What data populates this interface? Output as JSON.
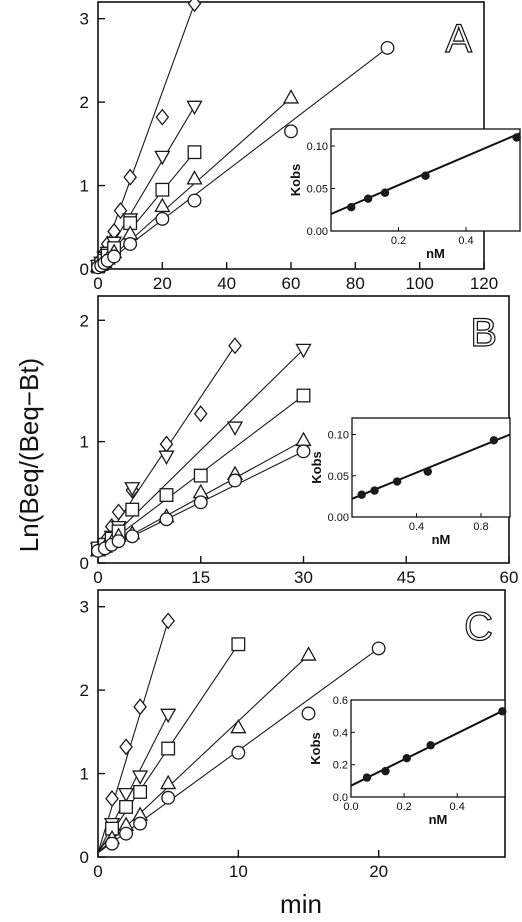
{
  "figure": {
    "ylabel": "Ln(Beq/(Beq−Bt)",
    "xlabel": "min"
  },
  "chart_data": [
    {
      "type": "line",
      "panel_label": "A",
      "xlim": [
        0,
        120
      ],
      "ylim": [
        0,
        3.2
      ],
      "xticks": [
        "0",
        "20",
        "40",
        "60",
        "80",
        "100",
        "120"
      ],
      "yticks": [
        "0",
        "1",
        "2",
        "3"
      ],
      "series": [
        {
          "marker": "diamond",
          "x": [
            0,
            1,
            2,
            3,
            5,
            7,
            10,
            20,
            30
          ],
          "y": [
            0.05,
            0.12,
            0.2,
            0.3,
            0.45,
            0.7,
            1.1,
            1.82,
            3.18
          ]
        },
        {
          "marker": "triangle-down",
          "x": [
            0,
            1,
            2,
            3,
            5,
            10,
            20,
            30
          ],
          "y": [
            0.04,
            0.08,
            0.14,
            0.2,
            0.32,
            0.6,
            1.35,
            1.95
          ]
        },
        {
          "marker": "square",
          "x": [
            0,
            1,
            2,
            3,
            5,
            10,
            20,
            30
          ],
          "y": [
            0.03,
            0.06,
            0.1,
            0.16,
            0.25,
            0.55,
            0.95,
            1.4
          ]
        },
        {
          "marker": "triangle-up",
          "x": [
            0,
            1,
            2,
            3,
            5,
            10,
            20,
            30,
            60
          ],
          "y": [
            0.03,
            0.05,
            0.08,
            0.12,
            0.2,
            0.42,
            0.75,
            1.08,
            2.05
          ]
        },
        {
          "marker": "circle",
          "x": [
            0,
            1,
            2,
            3,
            5,
            10,
            20,
            30,
            60,
            90
          ],
          "y": [
            0.02,
            0.04,
            0.07,
            0.1,
            0.15,
            0.3,
            0.6,
            0.82,
            1.65,
            2.65
          ]
        }
      ],
      "fit_lines": [
        {
          "from": [
            0,
            0
          ],
          "to": [
            30,
            3.18
          ]
        },
        {
          "from": [
            0,
            0
          ],
          "to": [
            30,
            1.95
          ]
        },
        {
          "from": [
            0,
            0
          ],
          "to": [
            30,
            1.4
          ]
        },
        {
          "from": [
            0,
            0
          ],
          "to": [
            60,
            2.05
          ]
        },
        {
          "from": [
            0,
            0
          ],
          "to": [
            90,
            2.65
          ]
        }
      ],
      "inset": {
        "xlabel": "nM",
        "ylabel": "Kobs",
        "xlim": [
          0,
          0.56
        ],
        "ylim": [
          0,
          0.12
        ],
        "xticks": [
          "0.2",
          "0.4"
        ],
        "xtick_values": [
          0.2,
          0.4
        ],
        "yticks": [
          "0.00",
          "0.05",
          "0.10"
        ],
        "ytick_values": [
          0,
          0.05,
          0.1
        ],
        "x": [
          0.06,
          0.11,
          0.16,
          0.28,
          0.55
        ],
        "y": [
          0.028,
          0.038,
          0.045,
          0.065,
          0.11
        ],
        "fit": {
          "from": [
            0,
            0.02
          ],
          "to": [
            0.56,
            0.115
          ]
        }
      }
    },
    {
      "type": "line",
      "panel_label": "B",
      "xlim": [
        0,
        60
      ],
      "ylim": [
        0,
        2.2
      ],
      "xticks": [
        "0",
        "15",
        "30",
        "45",
        "60"
      ],
      "yticks": [
        "0",
        "1",
        "2"
      ],
      "series": [
        {
          "marker": "diamond",
          "x": [
            0,
            1,
            2,
            3,
            5,
            10,
            15,
            20
          ],
          "y": [
            0.12,
            0.18,
            0.3,
            0.42,
            0.6,
            0.98,
            1.23,
            1.79
          ]
        },
        {
          "marker": "triangle-down",
          "x": [
            0,
            1,
            2,
            3,
            5,
            10,
            20,
            30
          ],
          "y": [
            0.12,
            0.16,
            0.22,
            0.3,
            0.62,
            0.88,
            1.12,
            1.76
          ]
        },
        {
          "marker": "square",
          "x": [
            0,
            1,
            2,
            3,
            5,
            10,
            15,
            30
          ],
          "y": [
            0.12,
            0.15,
            0.2,
            0.26,
            0.44,
            0.56,
            0.72,
            1.38
          ]
        },
        {
          "marker": "triangle-up",
          "x": [
            0,
            1,
            2,
            3,
            5,
            10,
            15,
            20,
            30
          ],
          "y": [
            0.1,
            0.13,
            0.17,
            0.22,
            0.24,
            0.38,
            0.58,
            0.73,
            1.01
          ]
        },
        {
          "marker": "circle",
          "x": [
            0,
            1,
            2,
            3,
            5,
            10,
            15,
            20,
            30
          ],
          "y": [
            0.1,
            0.12,
            0.15,
            0.18,
            0.22,
            0.36,
            0.5,
            0.68,
            0.92
          ]
        }
      ],
      "fit_lines": [
        {
          "from": [
            0,
            0.1
          ],
          "to": [
            20,
            1.79
          ]
        },
        {
          "from": [
            0,
            0.1
          ],
          "to": [
            30,
            1.76
          ]
        },
        {
          "from": [
            0,
            0.1
          ],
          "to": [
            30,
            1.38
          ]
        },
        {
          "from": [
            0,
            0.08
          ],
          "to": [
            30,
            1.01
          ]
        },
        {
          "from": [
            0,
            0.08
          ],
          "to": [
            30,
            0.92
          ]
        }
      ],
      "inset": {
        "xlabel": "nM",
        "ylabel": "Kobs",
        "xlim": [
          0,
          0.98
        ],
        "ylim": [
          0,
          0.12
        ],
        "xticks": [
          "0.4",
          "0.8"
        ],
        "xtick_values": [
          0.4,
          0.8
        ],
        "yticks": [
          "0.00",
          "0.05",
          "0.10"
        ],
        "ytick_values": [
          0,
          0.05,
          0.1
        ],
        "x": [
          0.06,
          0.14,
          0.28,
          0.47,
          0.88
        ],
        "y": [
          0.027,
          0.032,
          0.043,
          0.055,
          0.093
        ],
        "fit": {
          "from": [
            0,
            0.022
          ],
          "to": [
            0.98,
            0.1
          ]
        }
      }
    },
    {
      "type": "line",
      "panel_label": "C",
      "xlim": [
        0,
        29
      ],
      "ylim": [
        0,
        3.2
      ],
      "xticks": [
        "0",
        "10",
        "20"
      ],
      "yticks": [
        "0",
        "1",
        "2",
        "3"
      ],
      "series": [
        {
          "marker": "diamond",
          "x": [
            1,
            2,
            3,
            5
          ],
          "y": [
            0.7,
            1.32,
            1.8,
            2.83
          ]
        },
        {
          "marker": "triangle-down",
          "x": [
            1,
            2,
            3,
            5
          ],
          "y": [
            0.4,
            0.76,
            0.97,
            1.71
          ]
        },
        {
          "marker": "square",
          "x": [
            1,
            2,
            3,
            5,
            10
          ],
          "y": [
            0.34,
            0.6,
            0.78,
            1.3,
            2.55
          ]
        },
        {
          "marker": "triangle-up",
          "x": [
            1,
            2,
            3,
            5,
            10,
            15
          ],
          "y": [
            0.22,
            0.38,
            0.5,
            0.88,
            1.55,
            2.42
          ]
        },
        {
          "marker": "circle",
          "x": [
            1,
            2,
            3,
            5,
            10,
            15,
            20
          ],
          "y": [
            0.16,
            0.28,
            0.4,
            0.71,
            1.25,
            1.72,
            2.5
          ]
        }
      ],
      "fit_lines": [
        {
          "from": [
            0,
            0.05
          ],
          "to": [
            5,
            2.83
          ]
        },
        {
          "from": [
            0,
            0.05
          ],
          "to": [
            5,
            1.71
          ]
        },
        {
          "from": [
            0,
            0.05
          ],
          "to": [
            10,
            2.55
          ]
        },
        {
          "from": [
            0,
            0.05
          ],
          "to": [
            15,
            2.42
          ]
        },
        {
          "from": [
            0,
            0.05
          ],
          "to": [
            20,
            2.5
          ]
        }
      ],
      "inset": {
        "xlabel": "nM",
        "ylabel": "Kobs",
        "xlim": [
          0,
          0.58
        ],
        "ylim": [
          0,
          0.6
        ],
        "xticks": [
          "0.0",
          "0.2",
          "0.4"
        ],
        "xtick_values": [
          0.0,
          0.2,
          0.4
        ],
        "yticks": [
          "0.0",
          "0.2",
          "0.4",
          "0.6"
        ],
        "ytick_values": [
          0,
          0.2,
          0.4,
          0.6
        ],
        "x": [
          0.06,
          0.13,
          0.21,
          0.3,
          0.57
        ],
        "y": [
          0.12,
          0.16,
          0.24,
          0.32,
          0.53
        ],
        "fit": {
          "from": [
            0,
            0.07
          ],
          "to": [
            0.58,
            0.54
          ]
        }
      }
    }
  ]
}
